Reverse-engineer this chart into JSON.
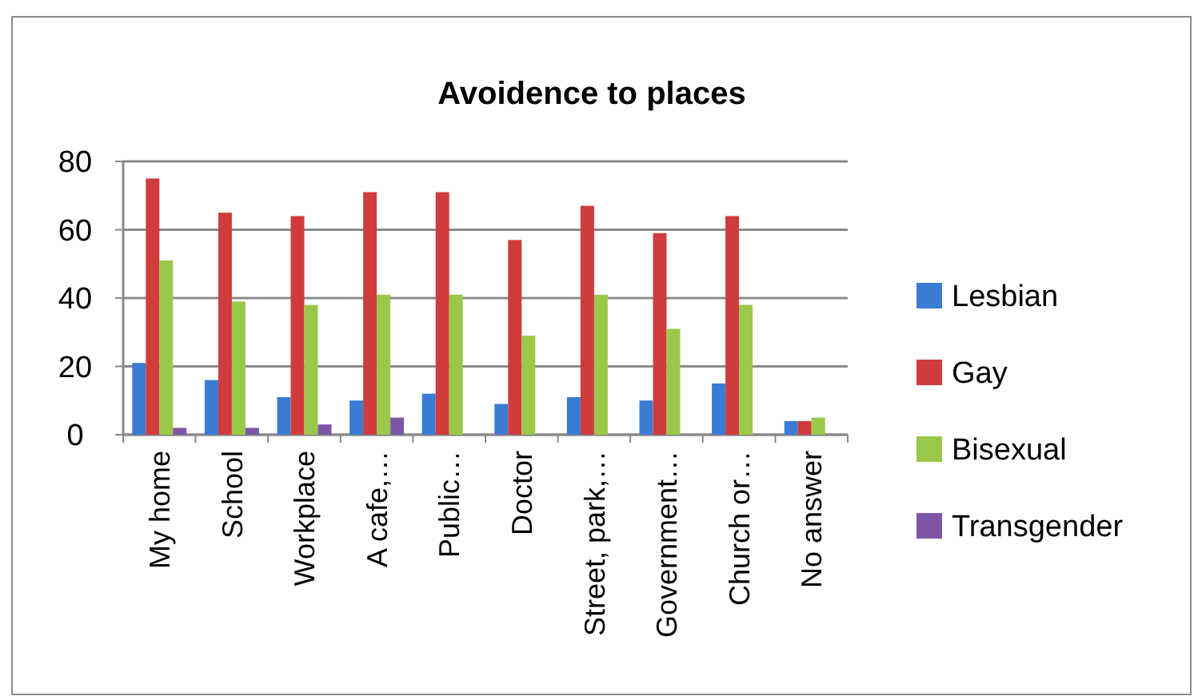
{
  "chart_data": {
    "type": "bar",
    "title": "Avoidence to places",
    "categories": [
      "My home",
      "School",
      "Workplace",
      "A cafe,…",
      "Public…",
      "Doctor",
      "Street, park,…",
      "Government…",
      "Church or…",
      "No answer"
    ],
    "series": [
      {
        "name": "Lesbian",
        "color": "#3a7bd5",
        "values": [
          21,
          16,
          11,
          10,
          12,
          9,
          11,
          10,
          15,
          4
        ]
      },
      {
        "name": "Gay",
        "color": "#d03c3c",
        "values": [
          75,
          65,
          64,
          71,
          71,
          57,
          67,
          59,
          64,
          4
        ]
      },
      {
        "name": "Bisexual",
        "color": "#9cc84a",
        "values": [
          51,
          39,
          38,
          41,
          41,
          29,
          41,
          31,
          38,
          5
        ]
      },
      {
        "name": "Transgender",
        "color": "#7e56a8",
        "values": [
          2,
          2,
          3,
          5,
          0,
          0,
          0,
          0,
          0,
          0
        ]
      }
    ],
    "ylim": [
      0,
      80
    ],
    "yticks": [
      0,
      20,
      40,
      60,
      80
    ],
    "grid": "y",
    "legend": "right"
  }
}
